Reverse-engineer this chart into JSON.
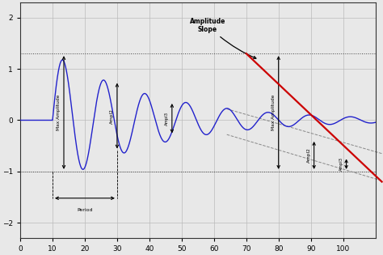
{
  "title": "",
  "xlim": [
    0,
    110
  ],
  "ylim": [
    -2.3,
    2.3
  ],
  "xticks": [
    0,
    10,
    20,
    30,
    40,
    50,
    60,
    70,
    80,
    90,
    100
  ],
  "yticks": [
    -2,
    -1,
    0,
    1,
    2
  ],
  "bg_color": "#e8e8e8",
  "wave_color": "#2222cc",
  "slope_color": "#cc0000",
  "grid_color": "#bbbbbb",
  "damp_factor": 0.032,
  "frequency": 0.157,
  "phase_shift": 10,
  "max_amplitude": 1.3,
  "hline1": 1.3,
  "hline2": -1.0,
  "slope_x_start": 70,
  "slope_x_end": 112,
  "slope_y_start": 1.3,
  "slope_y_end": -1.2,
  "env_x1": 64,
  "env_x2": 112,
  "env_top_y1": 0.22,
  "env_top_y2": -0.65,
  "env_bot_y1": -0.28,
  "env_bot_y2": -1.18
}
